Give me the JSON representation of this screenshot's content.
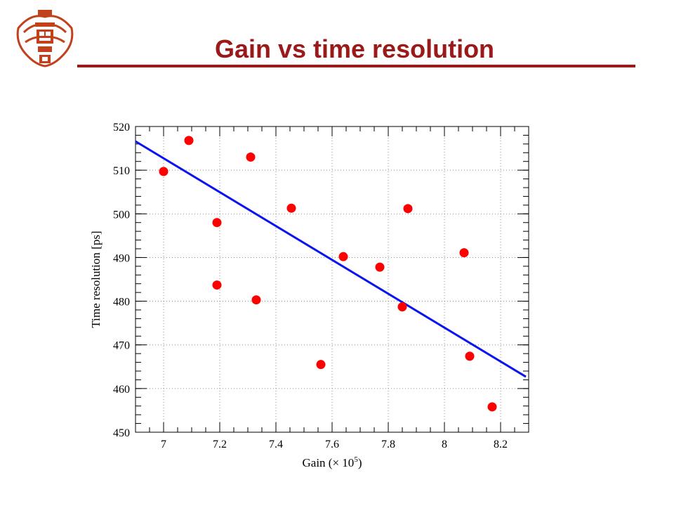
{
  "slide": {
    "title": "Gain vs time resolution",
    "title_color": "#9a1a1a",
    "logo_icon": "university-crest-icon",
    "logo_color": "#c2411d"
  },
  "chart_data": {
    "type": "scatter",
    "xlabel": "Gain (× 10",
    "xlabel_exp": "5",
    "xlabel_tail": ")",
    "ylabel": "Time resolution [ps]",
    "xlim": [
      6.9,
      8.3
    ],
    "ylim": [
      450,
      520
    ],
    "xticks": [
      7,
      7.2,
      7.4,
      7.6,
      7.8,
      8,
      8.2
    ],
    "xtick_labels": [
      "7",
      "7.2",
      "7.4",
      "7.6",
      "7.8",
      "8",
      "8.2"
    ],
    "yticks": [
      450,
      460,
      470,
      480,
      490,
      500,
      510,
      520
    ],
    "ytick_labels": [
      "450",
      "460",
      "470",
      "480",
      "490",
      "500",
      "510",
      "520"
    ],
    "grid": true,
    "points": [
      {
        "x": 7.0,
        "y": 509.7
      },
      {
        "x": 7.09,
        "y": 516.8
      },
      {
        "x": 7.19,
        "y": 498.0
      },
      {
        "x": 7.19,
        "y": 483.7
      },
      {
        "x": 7.31,
        "y": 513.0
      },
      {
        "x": 7.33,
        "y": 480.3
      },
      {
        "x": 7.455,
        "y": 501.3
      },
      {
        "x": 7.56,
        "y": 465.5
      },
      {
        "x": 7.64,
        "y": 490.2
      },
      {
        "x": 7.77,
        "y": 487.8
      },
      {
        "x": 7.85,
        "y": 478.7
      },
      {
        "x": 7.87,
        "y": 501.2
      },
      {
        "x": 8.07,
        "y": 491.1
      },
      {
        "x": 8.09,
        "y": 467.4
      },
      {
        "x": 8.17,
        "y": 455.8
      }
    ],
    "fit_line": {
      "x": [
        6.9,
        8.29
      ],
      "y": [
        516.6,
        462.7
      ]
    },
    "point_color": "#ff0000",
    "line_color": "#0a14f0"
  }
}
